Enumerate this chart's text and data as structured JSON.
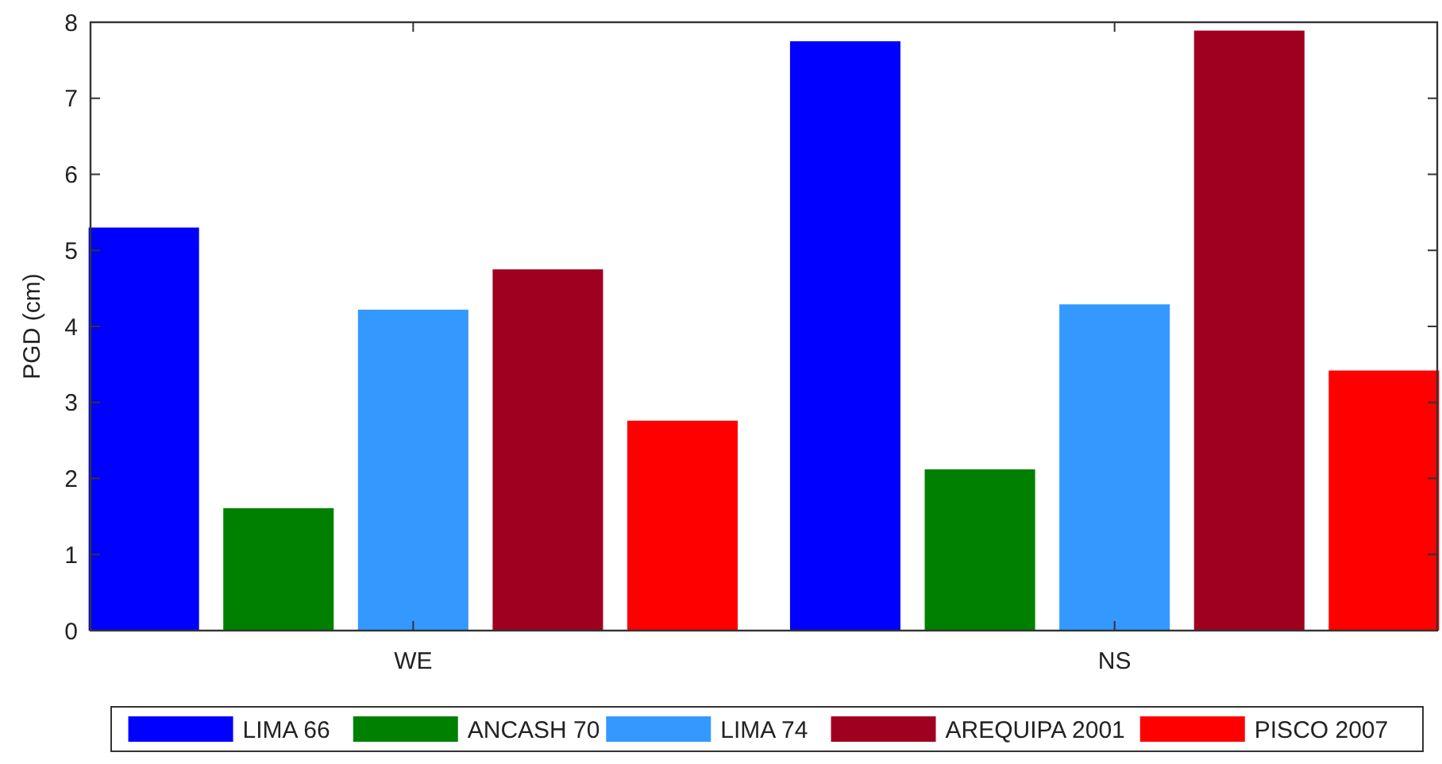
{
  "chart_data": {
    "type": "bar",
    "ylabel": "PGD (cm)",
    "categories": [
      "WE",
      "NS"
    ],
    "series": [
      {
        "name": "LIMA 66",
        "color": "#0000ff",
        "values": [
          5.3,
          7.75
        ]
      },
      {
        "name": "ANCASH 70",
        "color": "#008000",
        "values": [
          1.61,
          2.12
        ]
      },
      {
        "name": "LIMA 74",
        "color": "#3399ff",
        "values": [
          4.22,
          4.29
        ]
      },
      {
        "name": "AREQUIPA 2001",
        "color": "#a00020",
        "values": [
          4.75,
          7.89
        ]
      },
      {
        "name": "PISCO 2007",
        "color": "#ff0000",
        "values": [
          2.76,
          3.42
        ]
      }
    ],
    "ylim": [
      0,
      8
    ],
    "yticks": [
      0,
      1,
      2,
      3,
      4,
      5,
      6,
      7,
      8
    ],
    "grid": false,
    "legend": "bottom"
  }
}
